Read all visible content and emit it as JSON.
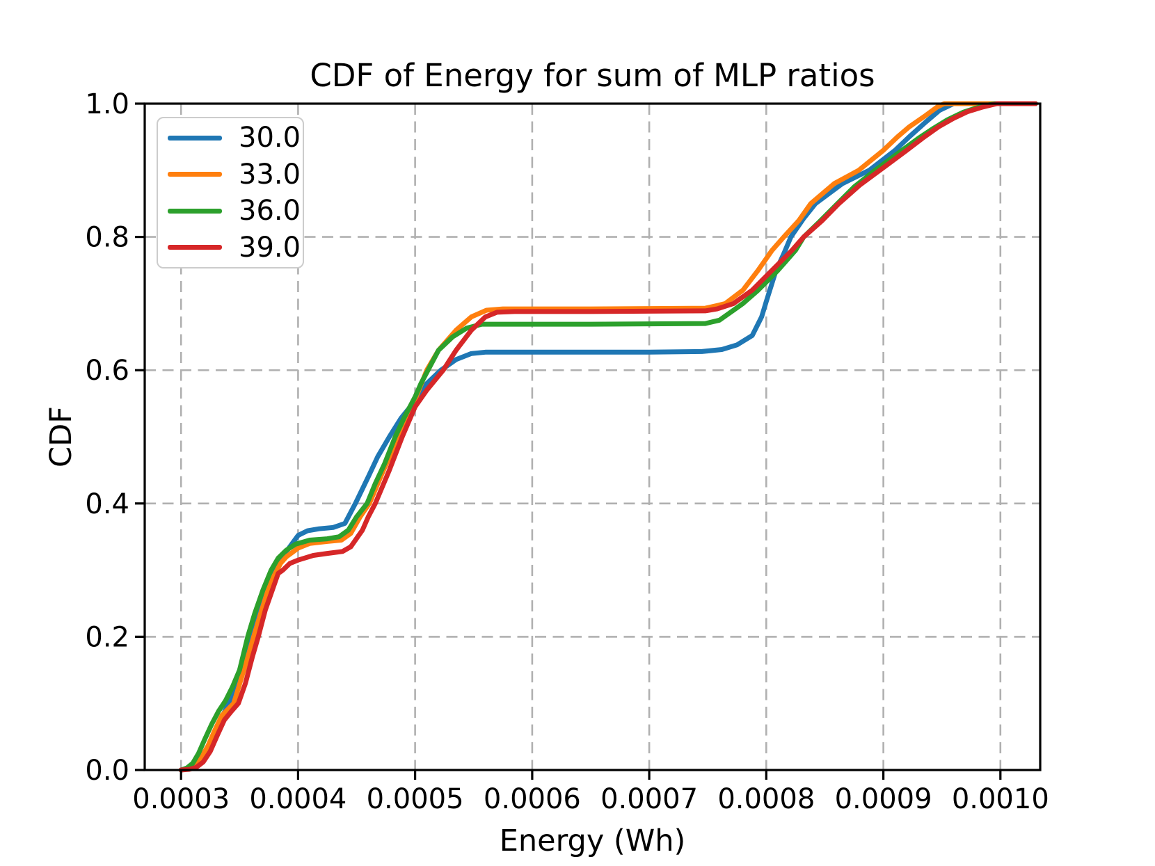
{
  "title": "CDF of Energy for sum of MLP ratios",
  "chart_data": {
    "type": "line",
    "title": "CDF of Energy for sum of MLP ratios",
    "xlabel": "Energy (Wh)",
    "ylabel": "CDF",
    "xlim": [
      0.000269,
      0.001034
    ],
    "ylim": [
      0.0,
      1.0
    ],
    "grid": true,
    "grid_color": "#b0b0b0",
    "axis_color": "#000000",
    "legend_position": "upper left",
    "x_ticks": {
      "values": [
        0.0003,
        0.0004,
        0.0005,
        0.0006,
        0.0007,
        0.0008,
        0.0009,
        0.001
      ],
      "labels": [
        "0.0003",
        "0.0004",
        "0.0005",
        "0.0006",
        "0.0007",
        "0.0008",
        "0.0009",
        "0.0010"
      ]
    },
    "y_ticks": {
      "values": [
        0.0,
        0.2,
        0.4,
        0.6,
        0.8,
        1.0
      ],
      "labels": [
        "0.0",
        "0.2",
        "0.4",
        "0.6",
        "0.8",
        "1.0"
      ]
    },
    "series": [
      {
        "name": "30.0",
        "color": "#1f77b4",
        "points": [
          [
            0.0003,
            0.0
          ],
          [
            0.000306,
            0.002
          ],
          [
            0.000312,
            0.006
          ],
          [
            0.000318,
            0.016
          ],
          [
            0.000324,
            0.034
          ],
          [
            0.00033,
            0.058
          ],
          [
            0.000336,
            0.083
          ],
          [
            0.000342,
            0.105
          ],
          [
            0.000348,
            0.138
          ],
          [
            0.000354,
            0.172
          ],
          [
            0.00036,
            0.2
          ],
          [
            0.000366,
            0.23
          ],
          [
            0.000372,
            0.262
          ],
          [
            0.000378,
            0.29
          ],
          [
            0.000384,
            0.312
          ],
          [
            0.00039,
            0.328
          ],
          [
            0.000395,
            0.34
          ],
          [
            0.0004,
            0.352
          ],
          [
            0.000408,
            0.359
          ],
          [
            0.000418,
            0.362
          ],
          [
            0.00043,
            0.364
          ],
          [
            0.00044,
            0.37
          ],
          [
            0.000449,
            0.4
          ],
          [
            0.00046,
            0.44
          ],
          [
            0.000468,
            0.47
          ],
          [
            0.000478,
            0.5
          ],
          [
            0.000488,
            0.528
          ],
          [
            0.0005,
            0.554
          ],
          [
            0.00051,
            0.58
          ],
          [
            0.000522,
            0.6
          ],
          [
            0.000535,
            0.616
          ],
          [
            0.000548,
            0.625
          ],
          [
            0.00056,
            0.627
          ],
          [
            0.0006,
            0.627
          ],
          [
            0.0007,
            0.627
          ],
          [
            0.000745,
            0.628
          ],
          [
            0.000762,
            0.631
          ],
          [
            0.000775,
            0.638
          ],
          [
            0.000788,
            0.652
          ],
          [
            0.000796,
            0.68
          ],
          [
            0.0008,
            0.703
          ],
          [
            0.000808,
            0.748
          ],
          [
            0.000815,
            0.775
          ],
          [
            0.000821,
            0.8
          ],
          [
            0.000832,
            0.828
          ],
          [
            0.000842,
            0.85
          ],
          [
            0.000865,
            0.88
          ],
          [
            0.000888,
            0.9
          ],
          [
            0.00091,
            0.93
          ],
          [
            0.000922,
            0.95
          ],
          [
            0.000936,
            0.972
          ],
          [
            0.000948,
            0.99
          ],
          [
            0.00096,
            1.0
          ],
          [
            0.00103,
            1.0
          ]
        ]
      },
      {
        "name": "33.0",
        "color": "#ff7f0e",
        "points": [
          [
            0.0003,
            0.0
          ],
          [
            0.000305,
            0.002
          ],
          [
            0.000311,
            0.007
          ],
          [
            0.000317,
            0.018
          ],
          [
            0.000323,
            0.036
          ],
          [
            0.000329,
            0.06
          ],
          [
            0.000335,
            0.082
          ],
          [
            0.000345,
            0.1
          ],
          [
            0.000352,
            0.14
          ],
          [
            0.000358,
            0.175
          ],
          [
            0.000362,
            0.2
          ],
          [
            0.000368,
            0.235
          ],
          [
            0.000374,
            0.268
          ],
          [
            0.000379,
            0.29
          ],
          [
            0.000385,
            0.31
          ],
          [
            0.00039,
            0.32
          ],
          [
            0.0004,
            0.333
          ],
          [
            0.00041,
            0.34
          ],
          [
            0.000425,
            0.343
          ],
          [
            0.000437,
            0.345
          ],
          [
            0.000445,
            0.355
          ],
          [
            0.000453,
            0.38
          ],
          [
            0.000461,
            0.4
          ],
          [
            0.000473,
            0.45
          ],
          [
            0.000486,
            0.5
          ],
          [
            0.0005,
            0.556
          ],
          [
            0.00051,
            0.6
          ],
          [
            0.00052,
            0.63
          ],
          [
            0.000535,
            0.66
          ],
          [
            0.000548,
            0.68
          ],
          [
            0.000561,
            0.69
          ],
          [
            0.000575,
            0.692
          ],
          [
            0.00065,
            0.692
          ],
          [
            0.000748,
            0.693
          ],
          [
            0.000758,
            0.697
          ],
          [
            0.000765,
            0.7
          ],
          [
            0.00078,
            0.72
          ],
          [
            0.000793,
            0.75
          ],
          [
            0.000805,
            0.78
          ],
          [
            0.000815,
            0.8
          ],
          [
            0.000828,
            0.825
          ],
          [
            0.000838,
            0.85
          ],
          [
            0.000858,
            0.88
          ],
          [
            0.000879,
            0.9
          ],
          [
            0.0009,
            0.93
          ],
          [
            0.000912,
            0.95
          ],
          [
            0.000922,
            0.965
          ],
          [
            0.000936,
            0.982
          ],
          [
            0.000946,
            0.995
          ],
          [
            0.000952,
            1.0
          ],
          [
            0.00103,
            1.0
          ]
        ]
      },
      {
        "name": "36.0",
        "color": "#2ca02c",
        "points": [
          [
            0.0003,
            0.0
          ],
          [
            0.000305,
            0.003
          ],
          [
            0.00031,
            0.01
          ],
          [
            0.000315,
            0.025
          ],
          [
            0.00032,
            0.045
          ],
          [
            0.000326,
            0.068
          ],
          [
            0.000332,
            0.088
          ],
          [
            0.000338,
            0.104
          ],
          [
            0.000344,
            0.125
          ],
          [
            0.00035,
            0.15
          ],
          [
            0.000357,
            0.2
          ],
          [
            0.000363,
            0.235
          ],
          [
            0.00037,
            0.27
          ],
          [
            0.000377,
            0.3
          ],
          [
            0.000383,
            0.318
          ],
          [
            0.00039,
            0.33
          ],
          [
            0.000398,
            0.339
          ],
          [
            0.00041,
            0.345
          ],
          [
            0.000425,
            0.347
          ],
          [
            0.000435,
            0.35
          ],
          [
            0.000443,
            0.36
          ],
          [
            0.00045,
            0.38
          ],
          [
            0.000459,
            0.4
          ],
          [
            0.000466,
            0.43
          ],
          [
            0.000474,
            0.46
          ],
          [
            0.000483,
            0.5
          ],
          [
            0.000491,
            0.53
          ],
          [
            0.0005,
            0.56
          ],
          [
            0.000505,
            0.58
          ],
          [
            0.000511,
            0.6
          ],
          [
            0.00052,
            0.63
          ],
          [
            0.000532,
            0.65
          ],
          [
            0.000544,
            0.663
          ],
          [
            0.000557,
            0.669
          ],
          [
            0.00065,
            0.669
          ],
          [
            0.000748,
            0.67
          ],
          [
            0.00076,
            0.675
          ],
          [
            0.000772,
            0.69
          ],
          [
            0.00078,
            0.7
          ],
          [
            0.000793,
            0.72
          ],
          [
            0.00081,
            0.75
          ],
          [
            0.000825,
            0.78
          ],
          [
            0.000832,
            0.8
          ],
          [
            0.000845,
            0.822
          ],
          [
            0.000858,
            0.845
          ],
          [
            0.000875,
            0.875
          ],
          [
            0.000893,
            0.9
          ],
          [
            0.000916,
            0.93
          ],
          [
            0.00093,
            0.948
          ],
          [
            0.000942,
            0.962
          ],
          [
            0.000955,
            0.976
          ],
          [
            0.000968,
            0.987
          ],
          [
            0.000982,
            0.995
          ],
          [
            0.000995,
            1.0
          ],
          [
            0.00103,
            1.0
          ]
        ]
      },
      {
        "name": "39.0",
        "color": "#d62728",
        "points": [
          [
            0.0003,
            0.0
          ],
          [
            0.000307,
            0.001
          ],
          [
            0.000313,
            0.004
          ],
          [
            0.000319,
            0.012
          ],
          [
            0.000325,
            0.028
          ],
          [
            0.000331,
            0.052
          ],
          [
            0.000337,
            0.075
          ],
          [
            0.000343,
            0.088
          ],
          [
            0.000349,
            0.1
          ],
          [
            0.000355,
            0.13
          ],
          [
            0.000361,
            0.17
          ],
          [
            0.000366,
            0.2
          ],
          [
            0.000372,
            0.24
          ],
          [
            0.000378,
            0.27
          ],
          [
            0.000383,
            0.295
          ],
          [
            0.000387,
            0.3
          ],
          [
            0.000393,
            0.31
          ],
          [
            0.0004,
            0.315
          ],
          [
            0.000413,
            0.322
          ],
          [
            0.000425,
            0.325
          ],
          [
            0.000438,
            0.328
          ],
          [
            0.000445,
            0.335
          ],
          [
            0.000455,
            0.36
          ],
          [
            0.00046,
            0.38
          ],
          [
            0.000466,
            0.4
          ],
          [
            0.000478,
            0.45
          ],
          [
            0.000489,
            0.5
          ],
          [
            0.0005,
            0.545
          ],
          [
            0.00051,
            0.57
          ],
          [
            0.000524,
            0.6
          ],
          [
            0.000535,
            0.63
          ],
          [
            0.000548,
            0.66
          ],
          [
            0.00056,
            0.68
          ],
          [
            0.00057,
            0.687
          ],
          [
            0.000585,
            0.688
          ],
          [
            0.00065,
            0.688
          ],
          [
            0.000748,
            0.689
          ],
          [
            0.000758,
            0.692
          ],
          [
            0.000772,
            0.7
          ],
          [
            0.000788,
            0.72
          ],
          [
            0.000805,
            0.75
          ],
          [
            0.000822,
            0.78
          ],
          [
            0.000832,
            0.8
          ],
          [
            0.000848,
            0.825
          ],
          [
            0.000862,
            0.85
          ],
          [
            0.00088,
            0.878
          ],
          [
            0.000897,
            0.9
          ],
          [
            0.00092,
            0.93
          ],
          [
            0.000935,
            0.95
          ],
          [
            0.000947,
            0.965
          ],
          [
            0.00096,
            0.978
          ],
          [
            0.000972,
            0.988
          ],
          [
            0.000985,
            0.995
          ],
          [
            0.000997,
            1.0
          ],
          [
            0.00103,
            1.0
          ]
        ]
      }
    ]
  }
}
